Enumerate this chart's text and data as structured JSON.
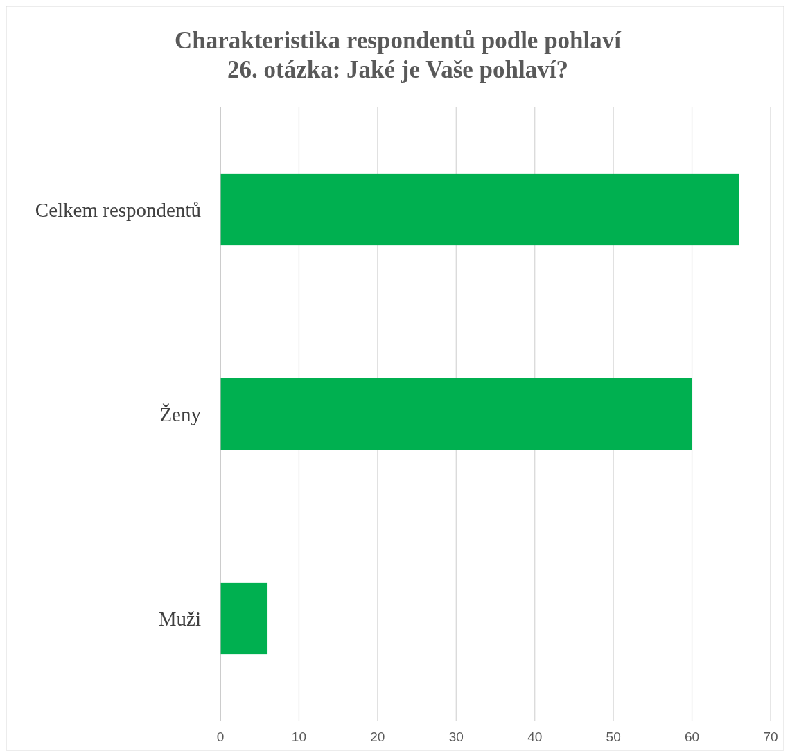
{
  "chart_data": {
    "type": "bar",
    "orientation": "horizontal",
    "title": "Charakteristika respondentů podle pohlaví\n26. otázka: Jaké je Vaše pohlaví?",
    "categories": [
      "Celkem respondentů",
      "Ženy",
      "Muži"
    ],
    "values": [
      66,
      60,
      6
    ],
    "color": "#00b050",
    "xlim": [
      0,
      70
    ],
    "xticks": [
      0,
      10,
      20,
      30,
      40,
      50,
      60,
      70
    ],
    "grid": "x"
  }
}
